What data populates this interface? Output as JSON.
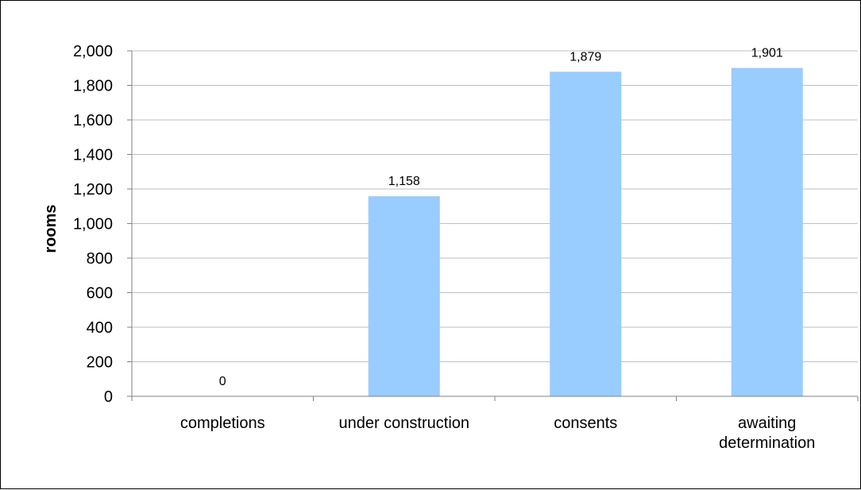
{
  "chart_data": {
    "type": "bar",
    "title": "",
    "xlabel": "",
    "ylabel": "rooms",
    "categories": [
      [
        "completions"
      ],
      [
        "under construction"
      ],
      [
        "consents"
      ],
      [
        "awaiting",
        "determination"
      ]
    ],
    "values": [
      0,
      1158,
      1879,
      1901
    ],
    "data_labels": [
      "0",
      "1,158",
      "1,879",
      "1,901"
    ],
    "ylim": [
      0,
      2000
    ],
    "yticks": [
      0,
      200,
      400,
      600,
      800,
      1000,
      1200,
      1400,
      1600,
      1800,
      2000
    ],
    "ytick_labels": [
      "0",
      "200",
      "400",
      "600",
      "800",
      "1,000",
      "1,200",
      "1,400",
      "1,600",
      "1,800",
      "2,000"
    ],
    "grid": true,
    "legend": "none",
    "colors": {
      "bar": "#99ccff",
      "grid": "#bfbfbf",
      "axis": "#808080"
    }
  }
}
